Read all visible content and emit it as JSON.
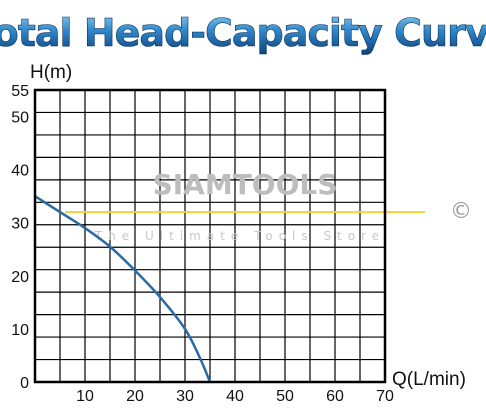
{
  "chart_data": {
    "type": "line",
    "title": "Total Head-Capacity Curve",
    "ylabel": "H(m)",
    "xlabel": "Q(L/min)",
    "xlim": [
      0,
      70
    ],
    "ylim": [
      0,
      55
    ],
    "x_ticks": [
      10,
      20,
      30,
      40,
      50,
      60,
      70
    ],
    "y_ticks": [
      0,
      10,
      20,
      30,
      40,
      50,
      55
    ],
    "grid": true,
    "series": [
      {
        "color": "#2a6aa5",
        "x": [
          0,
          5,
          10,
          15,
          20,
          25,
          30,
          33,
          35
        ],
        "y": [
          35,
          32,
          29,
          25.5,
          21,
          16,
          10,
          4.5,
          0
        ]
      }
    ],
    "reference_line": {
      "y": 32,
      "x_start": 6,
      "x_end": 78,
      "color": "#f2d040"
    },
    "watermark": {
      "text": "SIAMTOOLS",
      "tagline": "The Ultimate Tools Store",
      "symbol": "©"
    }
  }
}
